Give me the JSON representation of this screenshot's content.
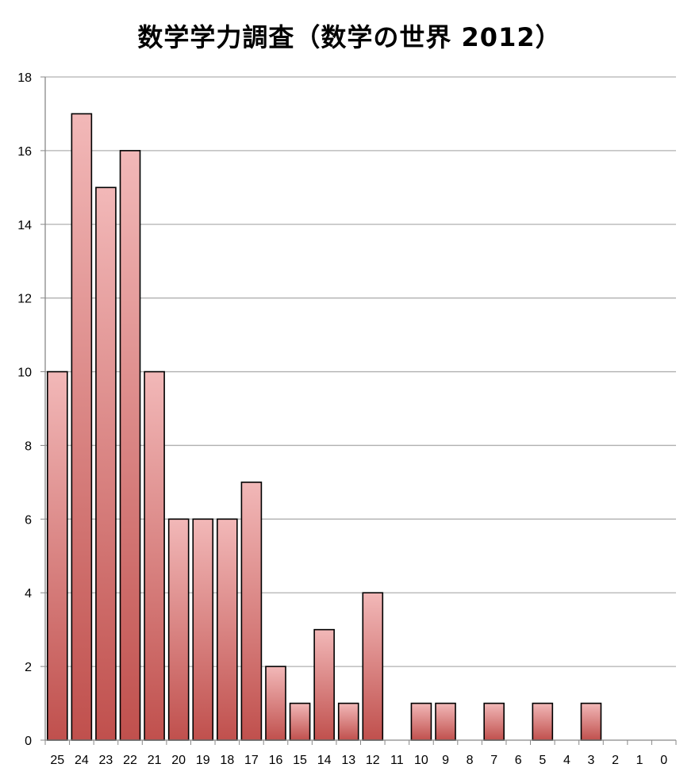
{
  "chart_data": {
    "type": "bar",
    "title": "数学学力調査（数学の世界 2012）",
    "xlabel": "",
    "ylabel": "",
    "categories": [
      "25",
      "24",
      "23",
      "22",
      "21",
      "20",
      "19",
      "18",
      "17",
      "16",
      "15",
      "14",
      "13",
      "12",
      "11",
      "10",
      "9",
      "8",
      "7",
      "6",
      "5",
      "4",
      "3",
      "2",
      "1",
      "0"
    ],
    "values": [
      10,
      17,
      15,
      16,
      10,
      6,
      6,
      6,
      7,
      2,
      1,
      3,
      1,
      4,
      0,
      1,
      1,
      0,
      1,
      0,
      1,
      0,
      1,
      0,
      0,
      0
    ],
    "ylim": [
      0,
      18
    ],
    "yticks": [
      0,
      2,
      4,
      6,
      8,
      10,
      12,
      14,
      16,
      18
    ],
    "grid": true,
    "legend": "none",
    "colors": {
      "bar_top": "#f2b8b8",
      "bar_bottom": "#c0504d",
      "bar_border": "#000000",
      "grid": "#b0b0b0"
    }
  }
}
